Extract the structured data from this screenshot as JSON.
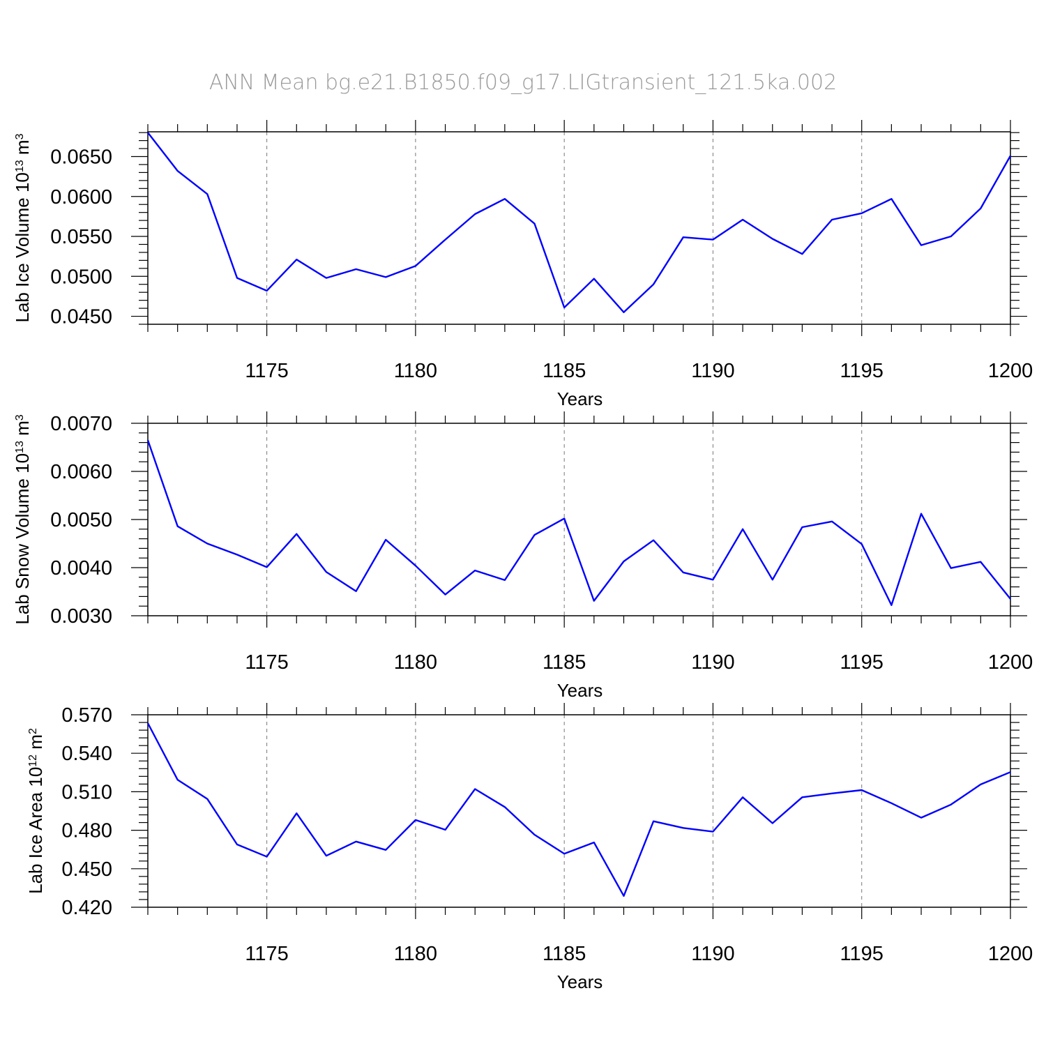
{
  "title": "ANN Mean bg.e21.B1850.f09_g17.LIGtransient_121.5ka.002",
  "colors": {
    "line": "#0000ff",
    "title": "#999999",
    "grid": "#777777"
  },
  "chart_data": [
    {
      "type": "line",
      "ylabel": "Lab Ice Volume 10",
      "yunit_exp": "13",
      "yunit_tail": " m",
      "yunit_pow": "3",
      "xlabel": "Years",
      "xlim": [
        1171,
        1200
      ],
      "ylim": [
        0.044,
        0.0681
      ],
      "xticks": [
        "1175",
        "1180",
        "1185",
        "1190",
        "1195",
        "1200"
      ],
      "yticks": [
        "0.0450",
        "0.0500",
        "0.0550",
        "0.0600",
        "0.0650"
      ],
      "grid": "vertical-dashed",
      "x": [
        1171,
        1172,
        1173,
        1174,
        1175,
        1176,
        1177,
        1178,
        1179,
        1180,
        1181,
        1182,
        1183,
        1184,
        1185,
        1186,
        1187,
        1188,
        1189,
        1190,
        1191,
        1192,
        1193,
        1194,
        1195,
        1196,
        1197,
        1198,
        1199,
        1200
      ],
      "series": [
        {
          "values": [
            0.068,
            0.0632,
            0.0603,
            0.0498,
            0.0482,
            0.0521,
            0.0498,
            0.0509,
            0.0499,
            0.0513,
            0.0546,
            0.0578,
            0.0597,
            0.0566,
            0.0461,
            0.0497,
            0.0455,
            0.049,
            0.0549,
            0.0546,
            0.0571,
            0.0547,
            0.0528,
            0.0571,
            0.0579,
            0.0597,
            0.0539,
            0.055,
            0.0585,
            0.0651
          ]
        }
      ]
    },
    {
      "type": "line",
      "ylabel": "Lab Snow Volume 10",
      "yunit_exp": "13",
      "yunit_tail": " m",
      "yunit_pow": "3",
      "xlabel": "Years",
      "xlim": [
        1171,
        1200
      ],
      "ylim": [
        0.003,
        0.007
      ],
      "xticks": [
        "1175",
        "1180",
        "1185",
        "1190",
        "1195",
        "1200"
      ],
      "yticks": [
        "0.0030",
        "0.0040",
        "0.0050",
        "0.0060",
        "0.0070"
      ],
      "grid": "vertical-dashed",
      "x": [
        1171,
        1172,
        1173,
        1174,
        1175,
        1176,
        1177,
        1178,
        1179,
        1180,
        1181,
        1182,
        1183,
        1184,
        1185,
        1186,
        1187,
        1188,
        1189,
        1190,
        1191,
        1192,
        1193,
        1194,
        1195,
        1196,
        1197,
        1198,
        1199,
        1200
      ],
      "series": [
        {
          "values": [
            0.00665,
            0.00486,
            0.0045,
            0.00427,
            0.00401,
            0.0047,
            0.00391,
            0.00351,
            0.00458,
            0.00404,
            0.00344,
            0.00394,
            0.00374,
            0.00468,
            0.00502,
            0.00331,
            0.00413,
            0.00457,
            0.0039,
            0.00375,
            0.0048,
            0.00375,
            0.00484,
            0.00496,
            0.00449,
            0.00322,
            0.00512,
            0.00399,
            0.00412,
            0.00335
          ]
        }
      ]
    },
    {
      "type": "line",
      "ylabel": "Lab Ice Area 10",
      "yunit_exp": "12",
      "yunit_tail": " m",
      "yunit_pow": "2",
      "xlabel": "Years",
      "xlim": [
        1171,
        1200
      ],
      "ylim": [
        0.42,
        0.57
      ],
      "xticks": [
        "1175",
        "1180",
        "1185",
        "1190",
        "1195",
        "1200"
      ],
      "yticks": [
        "0.420",
        "0.450",
        "0.480",
        "0.510",
        "0.540",
        "0.570"
      ],
      "grid": "vertical-dashed",
      "x": [
        1171,
        1172,
        1173,
        1174,
        1175,
        1176,
        1177,
        1178,
        1179,
        1180,
        1181,
        1182,
        1183,
        1184,
        1185,
        1186,
        1187,
        1188,
        1189,
        1190,
        1191,
        1192,
        1193,
        1194,
        1195,
        1196,
        1197,
        1198,
        1199,
        1200
      ],
      "series": [
        {
          "values": [
            0.5635,
            0.5193,
            0.5044,
            0.4689,
            0.4594,
            0.4932,
            0.4601,
            0.4712,
            0.4647,
            0.488,
            0.4804,
            0.5121,
            0.4981,
            0.4765,
            0.4617,
            0.4705,
            0.4288,
            0.487,
            0.4818,
            0.4789,
            0.5057,
            0.4855,
            0.5057,
            0.5087,
            0.5113,
            0.5011,
            0.4898,
            0.5,
            0.5157,
            0.5253
          ]
        }
      ]
    }
  ]
}
